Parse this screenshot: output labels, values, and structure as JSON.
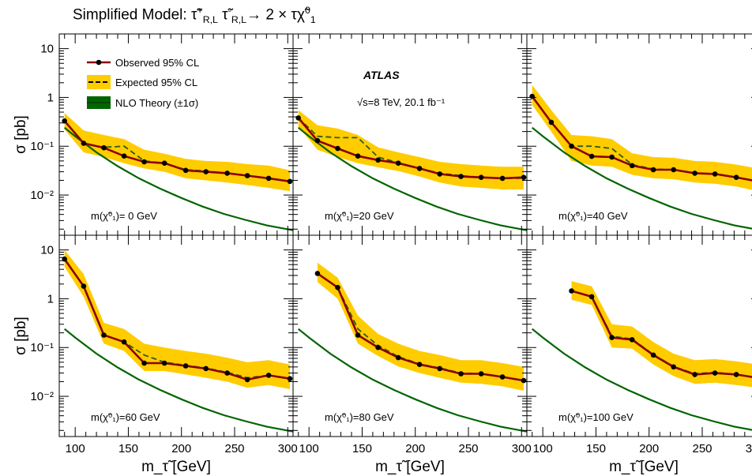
{
  "title": "Simplified Model: τ̃⁺R,L τ̃⁻R,L → 2 × τχ̃⁰₁",
  "atlas_label": "ATLAS",
  "energy_label": "√s=8 TeV, 20.1 fb⁻¹",
  "legend": {
    "observed": "Observed 95% CL",
    "expected": "Expected 95% CL",
    "theory": "NLO Theory (±1σ)"
  },
  "colors": {
    "observed": "#8b0000",
    "expected_band": "#ffcc00",
    "expected_line": "#2e5a1c",
    "theory": "#006400"
  },
  "axes": {
    "ylabel": "σ [pb]",
    "xlabel": "m_τ̃ [GeV]",
    "yticks": [
      "10⁻²",
      "10⁻¹",
      "1",
      "10"
    ],
    "xticks": [
      "100",
      "150",
      "200",
      "250",
      "300"
    ]
  },
  "chart_data": {
    "type": "line",
    "title": "Simplified Model: τ̃⁺R,L τ̃⁻R,L → 2 × τχ̃⁰₁",
    "xlabel": "m_τ̃ [GeV]",
    "ylabel": "σ [pb]",
    "yscale": "log",
    "xlim": [
      85,
      305
    ],
    "ylim": [
      0.0015,
      20
    ],
    "theory": {
      "name": "NLO Theory (±1σ)",
      "x": [
        90,
        100,
        120,
        140,
        160,
        180,
        200,
        220,
        240,
        260,
        280,
        305
      ],
      "y": [
        0.24,
        0.16,
        0.075,
        0.039,
        0.022,
        0.0135,
        0.0087,
        0.0058,
        0.0041,
        0.0031,
        0.0024,
        0.0019
      ]
    },
    "panels": [
      {
        "label": "m(χ̃⁰₁)= 0 GeV",
        "observed": {
          "x": [
            90,
            108,
            127,
            146,
            165,
            184,
            204,
            223,
            243,
            262,
            282,
            302
          ],
          "y": [
            0.33,
            0.115,
            0.093,
            0.063,
            0.048,
            0.045,
            0.032,
            0.03,
            0.028,
            0.025,
            0.022,
            0.019
          ]
        },
        "expected": {
          "x": [
            90,
            108,
            127,
            146,
            165,
            184,
            204,
            223,
            243,
            262,
            282,
            302
          ],
          "y": [
            0.33,
            0.115,
            0.095,
            0.1,
            0.05,
            0.045,
            0.033,
            0.031,
            0.028,
            0.025,
            0.022,
            0.019
          ]
        },
        "band_lo": [
          0.22,
          0.075,
          0.06,
          0.045,
          0.035,
          0.03,
          0.022,
          0.02,
          0.018,
          0.016,
          0.014,
          0.012
        ],
        "band_hi": [
          0.48,
          0.21,
          0.17,
          0.14,
          0.085,
          0.07,
          0.055,
          0.05,
          0.048,
          0.043,
          0.04,
          0.032
        ]
      },
      {
        "label": "m(χ̃⁰₁)=20 GeV",
        "observed": {
          "x": [
            90,
            108,
            127,
            146,
            165,
            184,
            204,
            223,
            243,
            262,
            282,
            302
          ],
          "y": [
            0.38,
            0.13,
            0.09,
            0.063,
            0.052,
            0.045,
            0.035,
            0.027,
            0.024,
            0.023,
            0.022,
            0.023
          ]
        },
        "expected": {
          "x": [
            90,
            108,
            127,
            146,
            165,
            184,
            204,
            223,
            243,
            262,
            282,
            302
          ],
          "y": [
            0.38,
            0.16,
            0.15,
            0.15,
            0.06,
            0.046,
            0.035,
            0.028,
            0.025,
            0.023,
            0.022,
            0.022
          ]
        },
        "band_lo": [
          0.25,
          0.085,
          0.06,
          0.045,
          0.037,
          0.031,
          0.024,
          0.018,
          0.015,
          0.014,
          0.013,
          0.013
        ],
        "band_hi": [
          0.55,
          0.27,
          0.23,
          0.17,
          0.095,
          0.075,
          0.06,
          0.048,
          0.043,
          0.04,
          0.038,
          0.038
        ]
      },
      {
        "label": "m(χ̃⁰₁)=40 GeV",
        "observed": {
          "x": [
            90,
            108,
            127,
            146,
            165,
            184,
            204,
            223,
            243,
            262,
            282,
            302
          ],
          "y": [
            1.05,
            0.31,
            0.1,
            0.062,
            0.06,
            0.04,
            0.033,
            0.033,
            0.028,
            0.027,
            0.023,
            0.019
          ]
        },
        "expected": {
          "x": [
            90,
            108,
            127,
            146,
            165,
            184,
            204,
            223,
            243,
            262,
            282,
            302
          ],
          "y": [
            1.05,
            0.31,
            0.1,
            0.1,
            0.09,
            0.042,
            0.034,
            0.033,
            0.028,
            0.027,
            0.023,
            0.019
          ]
        },
        "band_lo": [
          0.7,
          0.2,
          0.05,
          0.04,
          0.038,
          0.026,
          0.022,
          0.021,
          0.018,
          0.017,
          0.015,
          0.012
        ],
        "band_hi": [
          1.8,
          0.55,
          0.17,
          0.16,
          0.14,
          0.072,
          0.06,
          0.058,
          0.05,
          0.048,
          0.042,
          0.035
        ]
      },
      {
        "label": "m(χ̃⁰₁)=60 GeV",
        "observed": {
          "x": [
            90,
            108,
            127,
            146,
            165,
            184,
            204,
            223,
            243,
            262,
            282,
            302
          ],
          "y": [
            6.5,
            1.8,
            0.18,
            0.13,
            0.048,
            0.048,
            0.042,
            0.037,
            0.03,
            0.022,
            0.027,
            0.023
          ]
        },
        "expected": {
          "x": [
            90,
            108,
            127,
            146,
            165,
            184,
            204,
            223,
            243,
            262,
            282,
            302
          ],
          "y": [
            6.5,
            1.8,
            0.18,
            0.13,
            0.07,
            0.05,
            0.043,
            0.038,
            0.031,
            0.024,
            0.027,
            0.023
          ]
        },
        "band_lo": [
          4.5,
          1.1,
          0.12,
          0.085,
          0.033,
          0.033,
          0.028,
          0.024,
          0.02,
          0.015,
          0.017,
          0.014
        ],
        "band_hi": [
          10,
          3.2,
          0.32,
          0.24,
          0.12,
          0.1,
          0.085,
          0.075,
          0.062,
          0.05,
          0.055,
          0.045
        ]
      },
      {
        "label": "m(χ̃⁰₁)=80 GeV",
        "observed": {
          "x": [
            108,
            127,
            146,
            165,
            184,
            204,
            223,
            243,
            262,
            282,
            302
          ],
          "y": [
            3.3,
            1.7,
            0.18,
            0.1,
            0.062,
            0.045,
            0.037,
            0.029,
            0.029,
            0.025,
            0.021
          ]
        },
        "expected": {
          "x": [
            108,
            127,
            146,
            165,
            184,
            204,
            223,
            243,
            262,
            282,
            302
          ],
          "y": [
            3.3,
            1.7,
            0.24,
            0.11,
            0.065,
            0.046,
            0.038,
            0.03,
            0.029,
            0.025,
            0.021
          ]
        },
        "band_lo": [
          2.2,
          1.0,
          0.12,
          0.067,
          0.041,
          0.03,
          0.024,
          0.019,
          0.018,
          0.016,
          0.013
        ],
        "band_hi": [
          5.5,
          2.7,
          0.45,
          0.19,
          0.12,
          0.085,
          0.07,
          0.055,
          0.055,
          0.048,
          0.04
        ]
      },
      {
        "label": "m(χ̃⁰₁)=100 GeV",
        "observed": {
          "x": [
            127,
            146,
            165,
            184,
            204,
            223,
            243,
            262,
            282,
            302
          ],
          "y": [
            1.45,
            1.1,
            0.16,
            0.145,
            0.07,
            0.04,
            0.028,
            0.03,
            0.028,
            0.024
          ]
        },
        "expected": {
          "x": [
            127,
            146,
            165,
            184,
            204,
            223,
            243,
            262,
            282,
            302
          ],
          "y": [
            1.45,
            1.1,
            0.17,
            0.15,
            0.072,
            0.041,
            0.029,
            0.031,
            0.028,
            0.024
          ]
        },
        "band_lo": [
          0.95,
          0.75,
          0.1,
          0.095,
          0.045,
          0.026,
          0.018,
          0.019,
          0.017,
          0.015
        ],
        "band_hi": [
          2.3,
          1.8,
          0.3,
          0.27,
          0.13,
          0.075,
          0.055,
          0.058,
          0.052,
          0.045
        ]
      }
    ]
  }
}
